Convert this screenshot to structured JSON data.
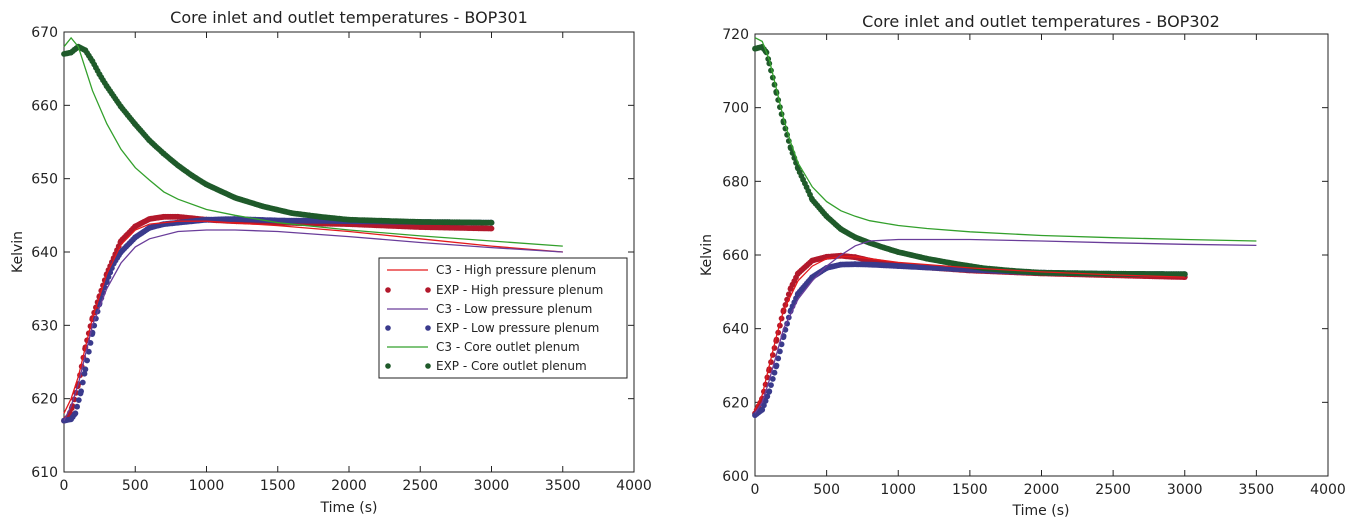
{
  "chart_data": [
    {
      "type": "line",
      "title": "Core inlet and outlet temperatures - BOP301",
      "xlabel": "Time (s)",
      "ylabel": "Kelvin",
      "xlim": [
        0,
        4000
      ],
      "ylim": [
        610,
        670
      ],
      "xticks": [
        0,
        500,
        1000,
        1500,
        2000,
        2500,
        3000,
        3500,
        4000
      ],
      "yticks": [
        610,
        620,
        630,
        640,
        650,
        660,
        670
      ],
      "grid": false,
      "legend_position": "right",
      "series": [
        {
          "name": "C3 - High pressure plenum",
          "kind": "line",
          "color": "#e31a1c",
          "x": [
            0,
            50,
            100,
            150,
            200,
            300,
            400,
            500,
            600,
            800,
            1000,
            1500,
            2000,
            2500,
            3000,
            3500
          ],
          "y": [
            618,
            620,
            623,
            627,
            631,
            637,
            641,
            643,
            643.8,
            644.2,
            644.2,
            643.6,
            642.8,
            641.8,
            640.8,
            640
          ]
        },
        {
          "name": "EXP - High pressure plenum",
          "kind": "points",
          "color": "#b2182b",
          "x": [
            0,
            30,
            60,
            100,
            150,
            200,
            250,
            300,
            400,
            500,
            600,
            700,
            800,
            900,
            1000,
            1200,
            1500,
            2000,
            2500,
            3000
          ],
          "y": [
            617,
            617.5,
            619,
            622,
            627,
            631,
            634,
            637,
            641.5,
            643.5,
            644.5,
            644.8,
            644.8,
            644.6,
            644.4,
            644.2,
            644,
            643.8,
            643.4,
            643.2
          ]
        },
        {
          "name": "C3 - Low pressure plenum",
          "kind": "line",
          "color": "#6a3d9a",
          "x": [
            0,
            50,
            100,
            150,
            200,
            300,
            400,
            500,
            600,
            800,
            1000,
            1200,
            1500,
            2000,
            2500,
            3000,
            3500
          ],
          "y": [
            617,
            619,
            622,
            626,
            630,
            635,
            638.5,
            640.7,
            641.8,
            642.8,
            643,
            643,
            642.8,
            642.1,
            641.3,
            640.6,
            640
          ]
        },
        {
          "name": "EXP - Low pressure plenum",
          "kind": "points",
          "color": "#3a3a8c",
          "x": [
            0,
            50,
            80,
            120,
            150,
            200,
            250,
            300,
            350,
            400,
            500,
            600,
            700,
            800,
            1000,
            1200,
            1500,
            2000,
            2500,
            3000
          ],
          "y": [
            617,
            617.2,
            618,
            621,
            624,
            629,
            633,
            636,
            638.5,
            640,
            642,
            643.3,
            643.8,
            644,
            644.4,
            644.5,
            644.3,
            644.2,
            644.1,
            644
          ]
        },
        {
          "name": "C3 - Core outlet plenum",
          "kind": "line",
          "color": "#33a02c",
          "x": [
            0,
            50,
            100,
            150,
            200,
            300,
            400,
            500,
            600,
            700,
            800,
            1000,
            1200,
            1500,
            2000,
            2500,
            3000,
            3500
          ],
          "y": [
            668,
            669.2,
            668,
            665,
            662,
            657.5,
            654,
            651.5,
            649.8,
            648.2,
            647.2,
            645.8,
            645,
            644,
            643,
            642.2,
            641.5,
            640.8
          ]
        },
        {
          "name": "EXP - Core outlet plenum",
          "kind": "points",
          "color": "#1f5a2a",
          "x": [
            0,
            50,
            100,
            150,
            200,
            250,
            300,
            400,
            500,
            600,
            700,
            800,
            900,
            1000,
            1200,
            1400,
            1600,
            1800,
            2000,
            2500,
            3000
          ],
          "y": [
            667,
            667.2,
            668,
            667.5,
            666,
            664.2,
            662.6,
            659.8,
            657.4,
            655.2,
            653.4,
            651.8,
            650.4,
            649.2,
            647.4,
            646.2,
            645.3,
            644.8,
            644.4,
            644.1,
            644
          ]
        }
      ]
    },
    {
      "type": "line",
      "title": "Core inlet and outlet temperatures - BOP302",
      "xlabel": "Time (s)",
      "ylabel": "Kelvin",
      "xlim": [
        0,
        4000
      ],
      "ylim": [
        600,
        720
      ],
      "xticks": [
        0,
        500,
        1000,
        1500,
        2000,
        2500,
        3000,
        3500,
        4000
      ],
      "yticks": [
        600,
        620,
        640,
        660,
        680,
        700,
        720
      ],
      "grid": false,
      "series": [
        {
          "name": "C3 - High pressure plenum",
          "kind": "line",
          "color": "#e31a1c",
          "x": [
            0,
            50,
            100,
            150,
            200,
            300,
            400,
            500,
            600,
            700,
            800,
            1000,
            1500,
            2000,
            2500,
            3000
          ],
          "y": [
            618,
            622,
            630,
            638,
            645,
            653,
            657,
            659,
            659.6,
            659.5,
            659,
            658,
            656.5,
            655.4,
            654.6,
            654
          ]
        },
        {
          "name": "EXP - High pressure plenum",
          "kind": "points",
          "color": "#b2182b",
          "x": [
            0,
            50,
            100,
            150,
            200,
            250,
            300,
            400,
            500,
            600,
            700,
            800,
            1000,
            1500,
            2000,
            2500,
            3000
          ],
          "y": [
            617,
            621,
            629,
            637,
            645,
            651,
            655,
            658.5,
            659.5,
            659.8,
            659.4,
            658.5,
            657.2,
            655.8,
            655,
            654.5,
            654
          ]
        },
        {
          "name": "C3 - Low pressure plenum",
          "kind": "line",
          "color": "#6a3d9a",
          "x": [
            0,
            50,
            100,
            150,
            200,
            300,
            400,
            500,
            600,
            700,
            800,
            1000,
            1500,
            2000,
            2500,
            3000,
            3500
          ],
          "y": [
            617,
            620,
            626,
            633,
            640,
            648,
            653,
            657,
            660,
            662.5,
            663.8,
            664.2,
            664.2,
            663.8,
            663.3,
            662.9,
            662.6
          ]
        },
        {
          "name": "EXP - Low pressure plenum",
          "kind": "points",
          "color": "#3a3a8c",
          "x": [
            0,
            50,
            100,
            150,
            200,
            250,
            300,
            400,
            500,
            600,
            700,
            800,
            1000,
            1500,
            2000,
            2500,
            3000
          ],
          "y": [
            616.5,
            618,
            623,
            630,
            638,
            645,
            649.5,
            654,
            656.5,
            657.4,
            657.5,
            657.4,
            657,
            656,
            655.2,
            654.9,
            654.8
          ]
        },
        {
          "name": "C3 - Core outlet plenum",
          "kind": "line",
          "color": "#33a02c",
          "x": [
            0,
            50,
            100,
            150,
            200,
            250,
            300,
            400,
            500,
            600,
            700,
            800,
            1000,
            1200,
            1500,
            2000,
            2500,
            3000,
            3500
          ],
          "y": [
            719,
            718,
            713,
            705,
            697,
            690.5,
            685,
            678.5,
            674.5,
            672,
            670.5,
            669.3,
            668,
            667.2,
            666.3,
            665.3,
            664.7,
            664.2,
            663.8
          ]
        },
        {
          "name": "EXP - Core outlet plenum",
          "kind": "points",
          "color": "#1f5a2a",
          "x": [
            0,
            50,
            80,
            100,
            150,
            200,
            250,
            300,
            400,
            500,
            600,
            700,
            800,
            900,
            1000,
            1200,
            1400,
            1600,
            1800,
            2000,
            2500,
            3000
          ],
          "y": [
            716,
            716.5,
            715,
            712,
            704,
            696,
            689,
            683.5,
            675,
            670.5,
            667,
            664.8,
            663.3,
            662,
            660.8,
            659,
            657.6,
            656.4,
            655.7,
            655.2,
            654.9,
            654.8
          ]
        }
      ]
    }
  ]
}
